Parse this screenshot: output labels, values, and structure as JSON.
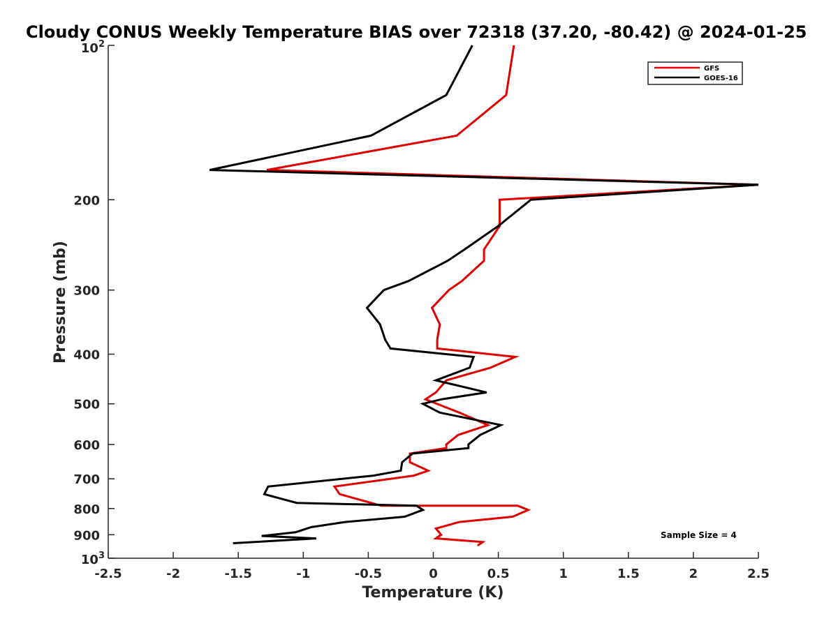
{
  "chart_data": {
    "type": "line",
    "title": "Cloudy CONUS Weekly Temperature BIAS over 72318 (37.20, -80.42) @ 2024-01-25",
    "xlabel": "Temperature (K)",
    "ylabel": "Pressure (mb)",
    "xlim": [
      -2.5,
      2.5
    ],
    "ylim": [
      100,
      1000
    ],
    "yscale": "log",
    "y_reversed": true,
    "x_ticks": [
      -2.5,
      -2,
      -1.5,
      -1,
      -0.5,
      0,
      0.5,
      1,
      1.5,
      2,
      2.5
    ],
    "x_tick_labels": [
      "-2.5",
      "-2",
      "-1.5",
      "-1",
      "-0.5",
      "0",
      "0.5",
      "1",
      "1.5",
      "2",
      "2.5"
    ],
    "y_ticks": [
      200,
      300,
      400,
      500,
      600,
      700,
      800,
      900
    ],
    "y_tick_labels": [
      "200",
      "300",
      "400",
      "500",
      "600",
      "700",
      "800",
      "900"
    ],
    "y_tick_top": {
      "base": "10",
      "exp": "2"
    },
    "y_tick_bottom": {
      "base": "10",
      "exp": "3"
    },
    "legend_position": "top-right",
    "annotation": "Sample Size = 4",
    "series": [
      {
        "name": "GFS",
        "color": "#e00000",
        "points": [
          [
            0.62,
            100
          ],
          [
            0.56,
            125
          ],
          [
            0.18,
            150
          ],
          [
            -1.28,
            175
          ],
          [
            2.5,
            187
          ],
          [
            0.51,
            200
          ],
          [
            0.51,
            225
          ],
          [
            0.39,
            250
          ],
          [
            0.39,
            263
          ],
          [
            0.22,
            288
          ],
          [
            0.12,
            300
          ],
          [
            -0.01,
            325
          ],
          [
            0.05,
            350
          ],
          [
            0.03,
            375
          ],
          [
            0.03,
            390
          ],
          [
            0.63,
            405
          ],
          [
            0.44,
            425
          ],
          [
            0.1,
            450
          ],
          [
            0.02,
            475
          ],
          [
            -0.06,
            490
          ],
          [
            0.2,
            520
          ],
          [
            0.42,
            550
          ],
          [
            0.19,
            575
          ],
          [
            0.1,
            600
          ],
          [
            0.1,
            610
          ],
          [
            -0.18,
            625
          ],
          [
            -0.18,
            650
          ],
          [
            -0.04,
            675
          ],
          [
            -0.15,
            690
          ],
          [
            -0.76,
            725
          ],
          [
            -0.72,
            750
          ],
          [
            -0.4,
            790
          ],
          [
            0.65,
            790
          ],
          [
            0.73,
            805
          ],
          [
            0.61,
            830
          ],
          [
            0.2,
            850
          ],
          [
            0.02,
            875
          ],
          [
            0.06,
            900
          ],
          [
            0.02,
            915
          ],
          [
            0.38,
            930
          ],
          [
            0.34,
            945
          ]
        ]
      },
      {
        "name": "GOES-16",
        "color": "#000000",
        "points": [
          [
            0.3,
            100
          ],
          [
            0.1,
            125
          ],
          [
            -0.48,
            150
          ],
          [
            -1.72,
            175
          ],
          [
            2.5,
            187
          ],
          [
            0.75,
            200
          ],
          [
            0.5,
            225
          ],
          [
            0.24,
            250
          ],
          [
            0.11,
            263
          ],
          [
            -0.19,
            288
          ],
          [
            -0.38,
            300
          ],
          [
            -0.51,
            325
          ],
          [
            -0.41,
            350
          ],
          [
            -0.37,
            375
          ],
          [
            -0.33,
            390
          ],
          [
            0.31,
            405
          ],
          [
            0.28,
            425
          ],
          [
            0.02,
            450
          ],
          [
            0.41,
            475
          ],
          [
            0.06,
            490
          ],
          [
            -0.08,
            500
          ],
          [
            0.05,
            520
          ],
          [
            0.52,
            550
          ],
          [
            0.36,
            575
          ],
          [
            0.27,
            600
          ],
          [
            0.27,
            610
          ],
          [
            -0.16,
            625
          ],
          [
            -0.24,
            650
          ],
          [
            -0.25,
            675
          ],
          [
            -0.46,
            690
          ],
          [
            -1.27,
            725
          ],
          [
            -1.3,
            750
          ],
          [
            -1.05,
            780
          ],
          [
            -0.13,
            790
          ],
          [
            -0.08,
            805
          ],
          [
            -0.22,
            830
          ],
          [
            -0.68,
            850
          ],
          [
            -0.94,
            870
          ],
          [
            -1.06,
            890
          ],
          [
            -1.32,
            905
          ],
          [
            -0.9,
            915
          ],
          [
            -1.54,
            935
          ]
        ]
      }
    ]
  }
}
